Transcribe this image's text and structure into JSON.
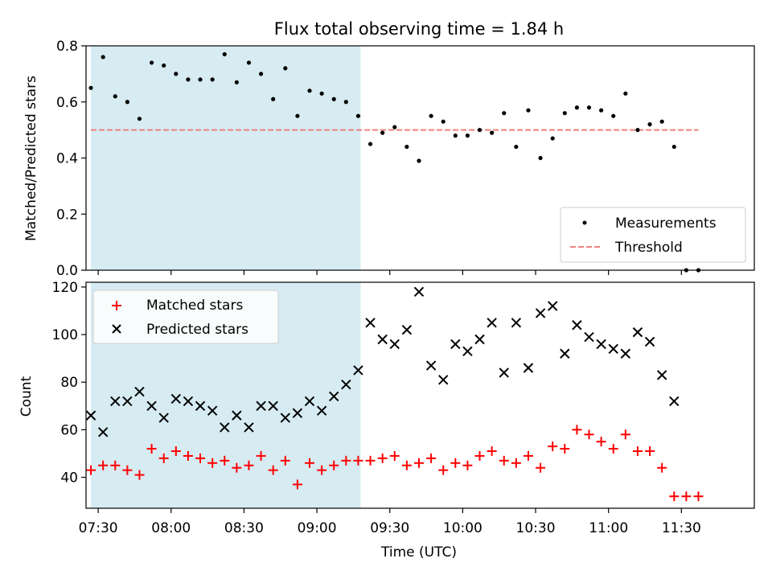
{
  "chart_data": [
    {
      "type": "scatter",
      "title": "Flux total observing time = 1.84 h",
      "xlabel": "",
      "ylabel": "Matched/Predicted stars",
      "xlim": [
        "07:25",
        "12:00"
      ],
      "ylim": [
        0,
        0.8
      ],
      "yticks": [
        "0.0",
        "0.2",
        "0.4",
        "0.6",
        "0.8"
      ],
      "highlight_span": [
        "07:27",
        "09:18"
      ],
      "threshold": {
        "name": "Threshold",
        "value": 0.5,
        "x": [
          "07:27",
          "11:37"
        ],
        "color": "#f08080",
        "style": "dashed"
      },
      "legend": {
        "position": "lower-right",
        "entries": [
          "Measurements",
          "Threshold"
        ]
      },
      "series": [
        {
          "name": "Measurements",
          "marker": "dot",
          "color": "#000000",
          "x": [
            "07:27",
            "07:32",
            "07:37",
            "07:42",
            "07:47",
            "07:52",
            "07:57",
            "08:02",
            "08:07",
            "08:12",
            "08:17",
            "08:22",
            "08:27",
            "08:32",
            "08:37",
            "08:42",
            "08:47",
            "08:52",
            "08:57",
            "09:02",
            "09:07",
            "09:12",
            "09:17",
            "09:22",
            "09:27",
            "09:32",
            "09:37",
            "09:42",
            "09:47",
            "09:52",
            "09:57",
            "10:02",
            "10:07",
            "10:12",
            "10:17",
            "10:22",
            "10:27",
            "10:32",
            "10:37",
            "10:42",
            "10:47",
            "10:52",
            "10:57",
            "11:02",
            "11:07",
            "11:12",
            "11:17",
            "11:22",
            "11:27",
            "11:32",
            "11:37"
          ],
          "y": [
            0.65,
            0.76,
            0.62,
            0.6,
            0.54,
            0.74,
            0.73,
            0.7,
            0.68,
            0.68,
            0.68,
            0.77,
            0.67,
            0.74,
            0.7,
            0.61,
            0.72,
            0.55,
            0.64,
            0.63,
            0.61,
            0.6,
            0.55,
            0.45,
            0.49,
            0.51,
            0.44,
            0.39,
            0.55,
            0.53,
            0.48,
            0.48,
            0.5,
            0.49,
            0.56,
            0.44,
            0.57,
            0.4,
            0.47,
            0.56,
            0.58,
            0.58,
            0.57,
            0.55,
            0.63,
            0.5,
            0.52,
            0.53,
            0.44,
            0.0,
            0.0
          ]
        }
      ]
    },
    {
      "type": "scatter",
      "title": "",
      "xlabel": "Time (UTC)",
      "ylabel": "Count",
      "xlim": [
        "07:25",
        "12:00"
      ],
      "ylim": [
        27,
        122
      ],
      "xticks": [
        "07:30",
        "08:00",
        "08:30",
        "09:00",
        "09:30",
        "10:00",
        "10:30",
        "11:00",
        "11:30"
      ],
      "yticks": [
        "40",
        "60",
        "80",
        "100",
        "120"
      ],
      "highlight_span": [
        "07:27",
        "09:18"
      ],
      "legend": {
        "position": "upper-left",
        "entries": [
          "Matched stars",
          "Predicted stars"
        ]
      },
      "series": [
        {
          "name": "Matched stars",
          "marker": "plus",
          "color": "#ff0000",
          "x": [
            "07:27",
            "07:32",
            "07:37",
            "07:42",
            "07:47",
            "07:52",
            "07:57",
            "08:02",
            "08:07",
            "08:12",
            "08:17",
            "08:22",
            "08:27",
            "08:32",
            "08:37",
            "08:42",
            "08:47",
            "08:52",
            "08:57",
            "09:02",
            "09:07",
            "09:12",
            "09:17",
            "09:22",
            "09:27",
            "09:32",
            "09:37",
            "09:42",
            "09:47",
            "09:52",
            "09:57",
            "10:02",
            "10:07",
            "10:12",
            "10:17",
            "10:22",
            "10:27",
            "10:32",
            "10:37",
            "10:42",
            "10:47",
            "10:52",
            "10:57",
            "11:02",
            "11:07",
            "11:12",
            "11:17",
            "11:22",
            "11:27",
            "11:32",
            "11:37"
          ],
          "y": [
            43,
            45,
            45,
            43,
            41,
            52,
            48,
            51,
            49,
            48,
            46,
            47,
            44,
            45,
            49,
            43,
            47,
            37,
            46,
            43,
            45,
            47,
            47,
            47,
            48,
            49,
            45,
            46,
            48,
            43,
            46,
            45,
            49,
            51,
            47,
            46,
            49,
            44,
            53,
            52,
            60,
            58,
            55,
            52,
            58,
            51,
            51,
            44,
            32,
            32,
            32
          ]
        },
        {
          "name": "Predicted stars",
          "marker": "x",
          "color": "#000000",
          "x": [
            "07:27",
            "07:32",
            "07:37",
            "07:42",
            "07:47",
            "07:52",
            "07:57",
            "08:02",
            "08:07",
            "08:12",
            "08:17",
            "08:22",
            "08:27",
            "08:32",
            "08:37",
            "08:42",
            "08:47",
            "08:52",
            "08:57",
            "09:02",
            "09:07",
            "09:12",
            "09:17",
            "09:22",
            "09:27",
            "09:32",
            "09:37",
            "09:42",
            "09:47",
            "09:52",
            "09:57",
            "10:02",
            "10:07",
            "10:12",
            "10:17",
            "10:22",
            "10:27",
            "10:32",
            "10:37",
            "10:42",
            "10:47",
            "10:52",
            "10:57",
            "11:02",
            "11:07",
            "11:12",
            "11:17",
            "11:22",
            "11:27"
          ],
          "y": [
            66,
            59,
            72,
            72,
            76,
            70,
            65,
            73,
            72,
            70,
            68,
            61,
            66,
            61,
            70,
            70,
            65,
            67,
            72,
            68,
            74,
            79,
            85,
            105,
            98,
            96,
            102,
            118,
            87,
            81,
            96,
            93,
            98,
            105,
            84,
            105,
            86,
            109,
            112,
            92,
            104,
            99,
            96,
            94,
            92,
            101,
            97,
            83,
            72
          ]
        }
      ]
    }
  ]
}
